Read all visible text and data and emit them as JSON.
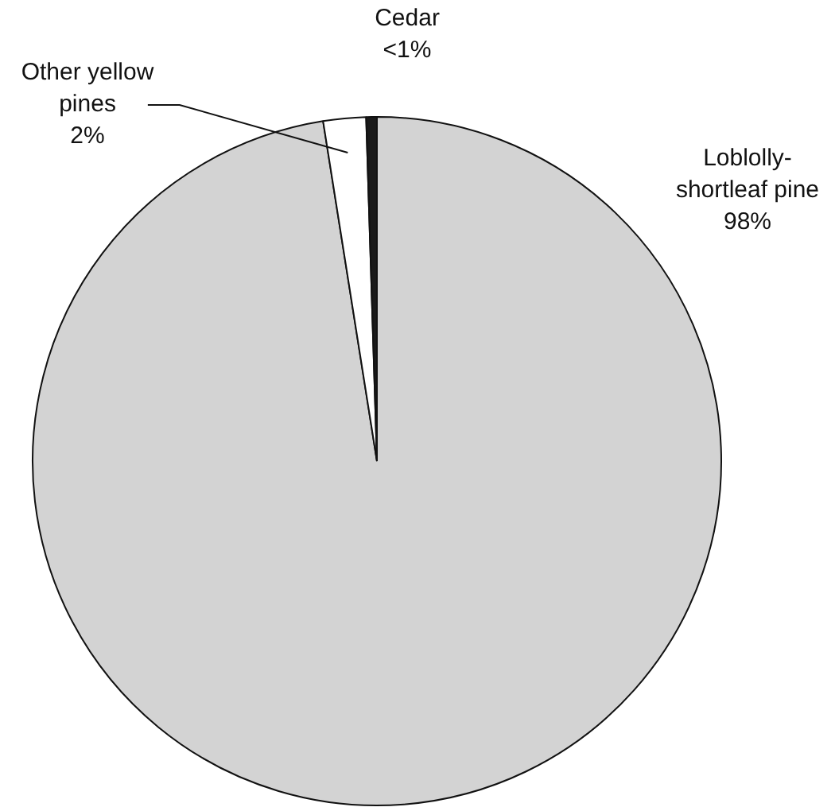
{
  "chart_data": {
    "type": "pie",
    "categories": [
      "Loblolly-shortleaf pine",
      "Other yellow pines",
      "Cedar"
    ],
    "values": [
      97.5,
      2,
      0.5
    ],
    "colors": [
      "#d3d3d3",
      "#ffffff",
      "#1a1a1a"
    ],
    "value_labels": [
      "98%",
      "2%",
      "<1%"
    ],
    "legend": false
  }
}
